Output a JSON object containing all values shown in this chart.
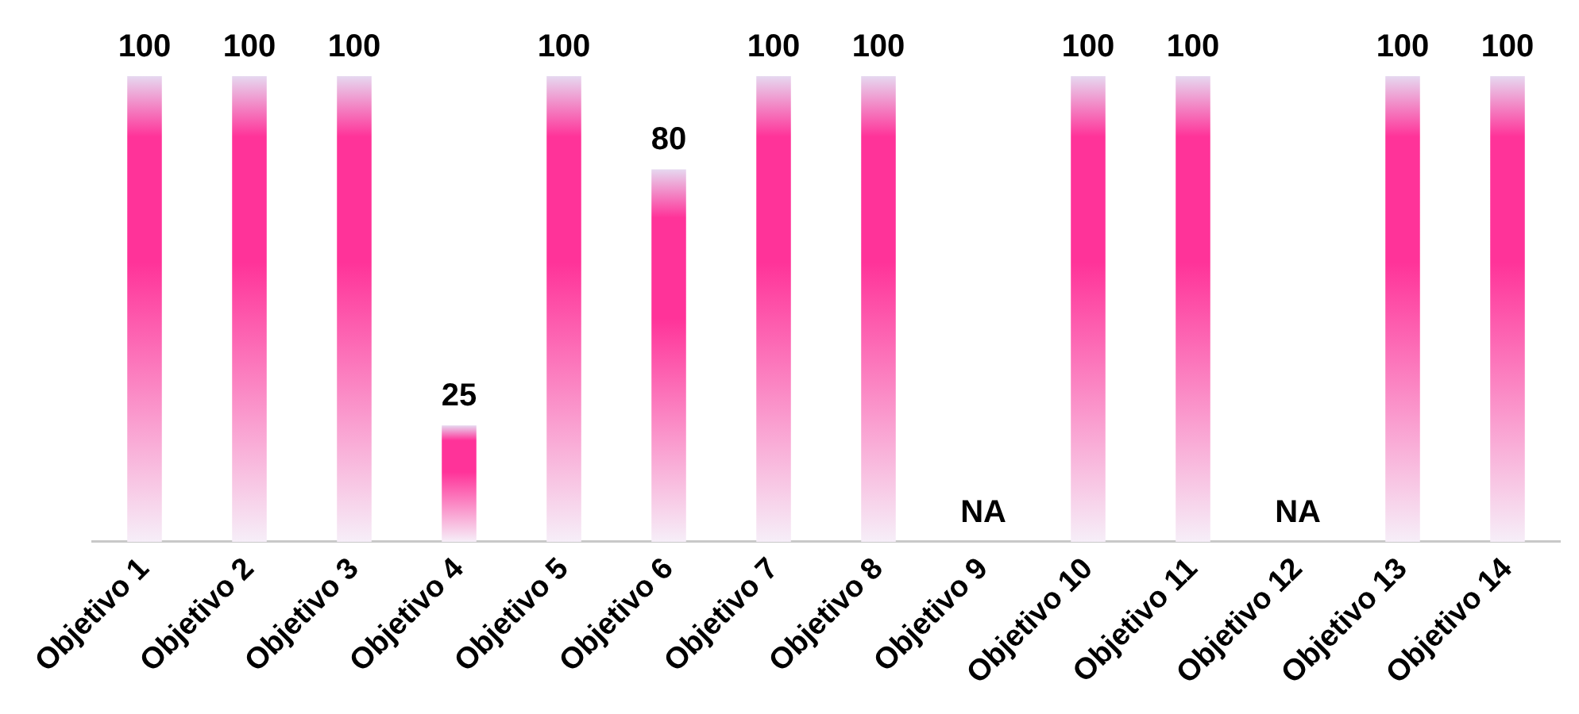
{
  "chart_data": {
    "type": "bar",
    "categories": [
      "Objetivo 1",
      "Objetivo 2",
      "Objetivo 3",
      "Objetivo 4",
      "Objetivo 5",
      "Objetivo 6",
      "Objetivo 7",
      "Objetivo 8",
      "Objetivo 9",
      "Objetivo 10",
      "Objetivo 11",
      "Objetivo 12",
      "Objetivo 13",
      "Objetivo 14"
    ],
    "values": [
      100,
      100,
      100,
      25,
      100,
      80,
      100,
      100,
      null,
      100,
      100,
      null,
      100,
      100
    ],
    "value_labels": [
      "100",
      "100",
      "100",
      "25",
      "100",
      "80",
      "100",
      "100",
      "NA",
      "100",
      "100",
      "NA",
      "100",
      "100"
    ],
    "color": "#ff3399",
    "grid": false,
    "legend": false
  }
}
